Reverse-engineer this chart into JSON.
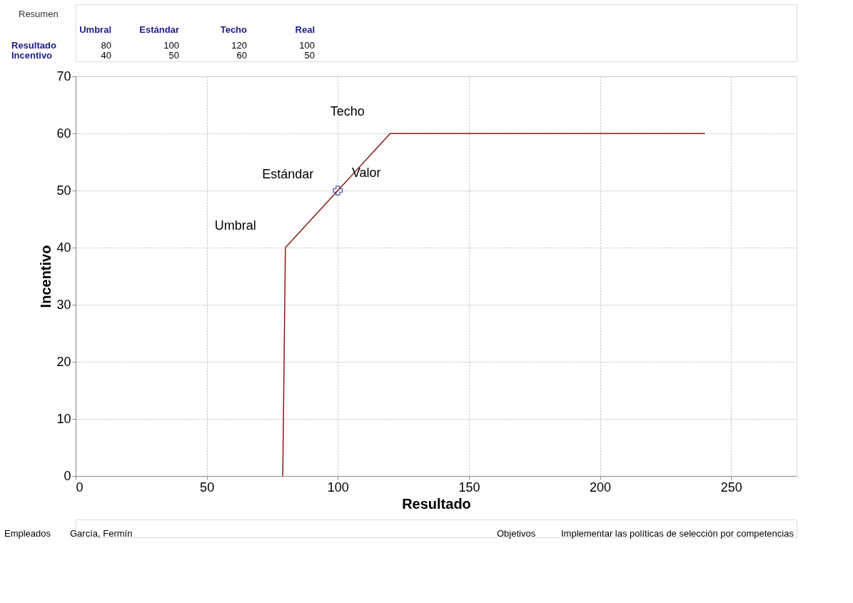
{
  "chart_data": {
    "type": "line",
    "xlabel": "Resultado",
    "ylabel": "Incentivo",
    "xlim": [
      0,
      275
    ],
    "xticks": [
      0,
      50,
      100,
      150,
      200,
      250
    ],
    "ylim": [
      0,
      70
    ],
    "yticks": [
      0,
      10,
      20,
      30,
      40,
      50,
      60,
      70
    ],
    "grid": true,
    "series": [
      {
        "color": "#8b1a1a",
        "x": [
          79,
          80,
          100,
          120,
          240
        ],
        "values": [
          0,
          40,
          50,
          60,
          60
        ]
      },
      {
        "type": "scatter",
        "color": "#1f3a93",
        "marker": "cross",
        "x": [
          100
        ],
        "values": [
          50
        ]
      }
    ],
    "annotations": [
      {
        "text": "Techo",
        "x": 120,
        "y": 60
      },
      {
        "text": "Estándar",
        "x": 100,
        "y": 50
      },
      {
        "text": "Valor",
        "x": 100,
        "y": 50
      },
      {
        "text": "Umbral",
        "x": 80,
        "y": 40
      },
      "Resumen",
      "Umbral",
      "Estándar",
      "Techo",
      "Real",
      "Resultado",
      "80",
      "100",
      "120",
      "100",
      "Incentivo",
      "40",
      "50",
      "60",
      "50",
      "Empleados",
      "García, Fermín",
      "Objetivos",
      "Implementar las políticas de selección por competencias"
    ]
  }
}
